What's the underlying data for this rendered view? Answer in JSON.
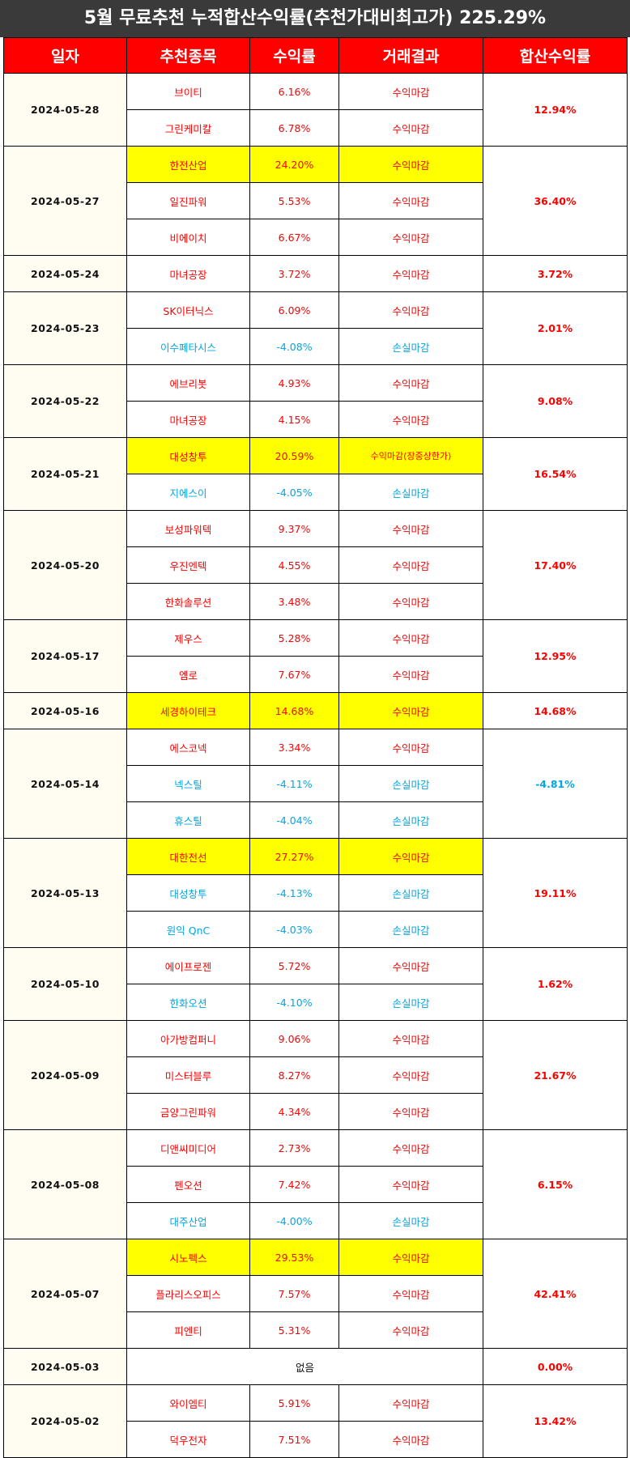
{
  "title": "5월 무료추천 누적합산수익률(추천가대비최고가) 225.29%",
  "headers": [
    "일자",
    "추천종목",
    "수익률",
    "거래결과",
    "합산수익률"
  ],
  "colors": {
    "header_bg": "#ff0000",
    "title_bg": "#3a3a3a",
    "highlight": "#ffff00",
    "profit": "#ff0000",
    "loss": "#00a6e6"
  },
  "days": [
    {
      "date": "2024-05-28",
      "total": "12.94%",
      "items": [
        {
          "name": "브이티",
          "rate": "6.16%",
          "result": "수익마감"
        },
        {
          "name": "그린케미칼",
          "rate": "6.78%",
          "result": "수익마감"
        }
      ]
    },
    {
      "date": "2024-05-27",
      "total": "36.40%",
      "items": [
        {
          "name": "한전산업",
          "rate": "24.20%",
          "result": "수익마감",
          "highlight": true
        },
        {
          "name": "일진파워",
          "rate": "5.53%",
          "result": "수익마감"
        },
        {
          "name": "비에이치",
          "rate": "6.67%",
          "result": "수익마감"
        }
      ]
    },
    {
      "date": "2024-05-24",
      "total": "3.72%",
      "items": [
        {
          "name": "마녀공장",
          "rate": "3.72%",
          "result": "수익마감"
        }
      ]
    },
    {
      "date": "2024-05-23",
      "total": "2.01%",
      "items": [
        {
          "name": "SK이터닉스",
          "rate": "6.09%",
          "result": "수익마감"
        },
        {
          "name": "이수페타시스",
          "rate": "-4.08%",
          "result": "손실마감",
          "loss": true
        }
      ]
    },
    {
      "date": "2024-05-22",
      "total": "9.08%",
      "items": [
        {
          "name": "에브리봇",
          "rate": "4.93%",
          "result": "수익마감"
        },
        {
          "name": "마녀공장",
          "rate": "4.15%",
          "result": "수익마감"
        }
      ]
    },
    {
      "date": "2024-05-21",
      "total": "16.54%",
      "items": [
        {
          "name": "대성창투",
          "rate": "20.59%",
          "result": "수익마감(장중상한가)",
          "highlight": true
        },
        {
          "name": "지에스이",
          "rate": "-4.05%",
          "result": "손실마감",
          "loss": true
        }
      ]
    },
    {
      "date": "2024-05-20",
      "total": "17.40%",
      "items": [
        {
          "name": "보성파워텍",
          "rate": "9.37%",
          "result": "수익마감"
        },
        {
          "name": "우진엔텍",
          "rate": "4.55%",
          "result": "수익마감"
        },
        {
          "name": "한화솔루션",
          "rate": "3.48%",
          "result": "수익마감"
        }
      ]
    },
    {
      "date": "2024-05-17",
      "total": "12.95%",
      "items": [
        {
          "name": "제우스",
          "rate": "5.28%",
          "result": "수익마감"
        },
        {
          "name": "엠로",
          "rate": "7.67%",
          "result": "수익마감"
        }
      ]
    },
    {
      "date": "2024-05-16",
      "total": "14.68%",
      "items": [
        {
          "name": "세경하이테크",
          "rate": "14.68%",
          "result": "수익마감",
          "highlight": true
        }
      ]
    },
    {
      "date": "2024-05-14",
      "total": "-4.81%",
      "total_loss": true,
      "items": [
        {
          "name": "에스코넥",
          "rate": "3.34%",
          "result": "수익마감"
        },
        {
          "name": "넥스틸",
          "rate": "-4.11%",
          "result": "손실마감",
          "loss": true
        },
        {
          "name": "휴스틸",
          "rate": "-4.04%",
          "result": "손실마감",
          "loss": true
        }
      ]
    },
    {
      "date": "2024-05-13",
      "total": "19.11%",
      "items": [
        {
          "name": "대한전선",
          "rate": "27.27%",
          "result": "수익마감",
          "highlight": true
        },
        {
          "name": "대성창투",
          "rate": "-4.13%",
          "result": "손실마감",
          "loss": true
        },
        {
          "name": "원익 QnC",
          "rate": "-4.03%",
          "result": "손실마감",
          "loss": true
        }
      ]
    },
    {
      "date": "2024-05-10",
      "total": "1.62%",
      "items": [
        {
          "name": "에이프로젠",
          "rate": "5.72%",
          "result": "수익마감"
        },
        {
          "name": "한화오션",
          "rate": "-4.10%",
          "result": "손실마감",
          "loss": true
        }
      ]
    },
    {
      "date": "2024-05-09",
      "total": "21.67%",
      "items": [
        {
          "name": "아가방컴퍼니",
          "rate": "9.06%",
          "result": "수익마감"
        },
        {
          "name": "미스터블루",
          "rate": "8.27%",
          "result": "수익마감"
        },
        {
          "name": "금양그린파워",
          "rate": "4.34%",
          "result": "수익마감"
        }
      ]
    },
    {
      "date": "2024-05-08",
      "total": "6.15%",
      "items": [
        {
          "name": "디앤씨미디어",
          "rate": "2.73%",
          "result": "수익마감"
        },
        {
          "name": "펜오션",
          "rate": "7.42%",
          "result": "수익마감"
        },
        {
          "name": "대주산업",
          "rate": "-4.00%",
          "result": "손실마감",
          "loss": true
        }
      ]
    },
    {
      "date": "2024-05-07",
      "total": "42.41%",
      "items": [
        {
          "name": "시노펙스",
          "rate": "29.53%",
          "result": "수익마감",
          "highlight": true
        },
        {
          "name": "플라리스오피스",
          "rate": "7.57%",
          "result": "수익마감"
        },
        {
          "name": "피엔티",
          "rate": "5.31%",
          "result": "수익마감"
        }
      ]
    },
    {
      "date": "2024-05-03",
      "total": "0.00%",
      "empty_text": "없음",
      "items": []
    },
    {
      "date": "2024-05-02",
      "total": "13.42%",
      "items": [
        {
          "name": "와이엠티",
          "rate": "5.91%",
          "result": "수익마감"
        },
        {
          "name": "덕우전자",
          "rate": "7.51%",
          "result": "수익마감"
        }
      ]
    }
  ]
}
